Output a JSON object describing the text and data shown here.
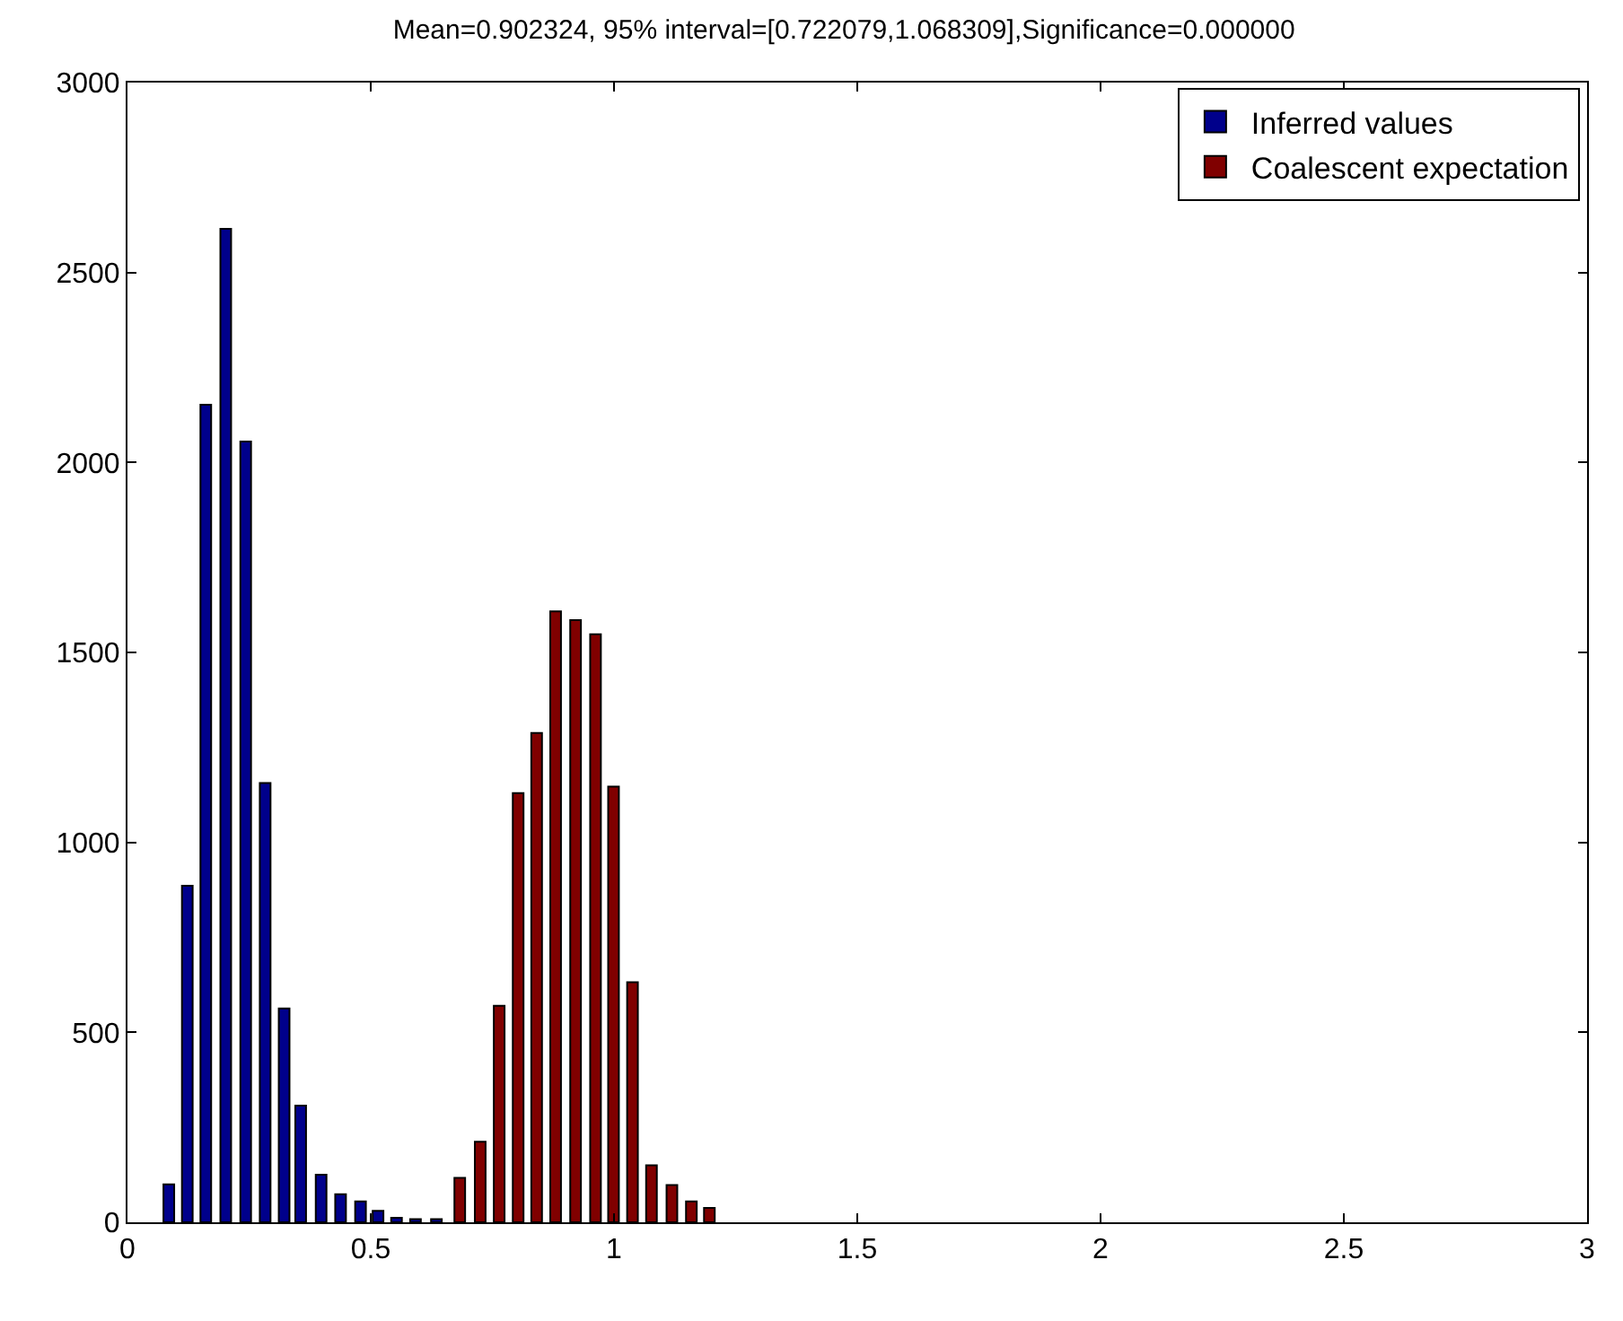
{
  "chart_data": {
    "type": "bar",
    "title": "Mean=0.902324, 95% interval=[0.722079,1.068309],Significance=0.000000",
    "series": [
      {
        "name": "Inferred values",
        "color": "#00008b",
        "x": [
          0.085,
          0.123,
          0.161,
          0.202,
          0.243,
          0.283,
          0.322,
          0.356,
          0.398,
          0.438,
          0.479,
          0.515,
          0.553,
          0.592,
          0.635
        ],
        "values": [
          100,
          886,
          2152,
          2615,
          2055,
          1156,
          563,
          307,
          125,
          74,
          55,
          30,
          12,
          8,
          8
        ]
      },
      {
        "name": "Coalescent expectation",
        "color": "#800000",
        "x": [
          0.683,
          0.725,
          0.764,
          0.803,
          0.841,
          0.88,
          0.921,
          0.962,
          0.999,
          1.038,
          1.077,
          1.119,
          1.159,
          1.196
        ],
        "values": [
          117,
          212,
          570,
          1130,
          1288,
          1608,
          1585,
          1548,
          1147,
          632,
          150,
          98,
          55,
          38
        ]
      }
    ],
    "xlim": [
      0,
      3
    ],
    "xticks": [
      0,
      0.5,
      1,
      1.5,
      2,
      2.5,
      3
    ],
    "ylim": [
      0,
      3000
    ],
    "yticks": [
      0,
      500,
      1000,
      1500,
      2000,
      2500,
      3000
    ],
    "grid": false,
    "legend": "top right"
  }
}
